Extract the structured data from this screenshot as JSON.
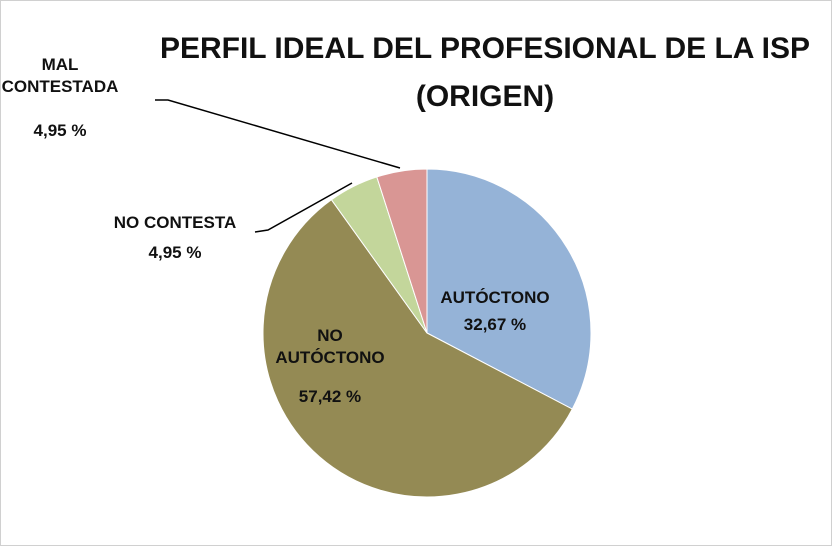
{
  "chart_data": {
    "type": "pie",
    "title": [
      "PERFIL IDEAL DEL PROFESIONAL DE LA ISP",
      "(ORIGEN)"
    ],
    "categories": [
      "AUTÓCTONO",
      "NO AUTÓCTONO",
      "NO CONTESTA",
      "MAL CONTESTADA"
    ],
    "values": [
      32.67,
      57.42,
      4.95,
      4.95
    ],
    "value_labels": [
      "32,67 %",
      "57,42 %",
      "4,95 %",
      "4,95 %"
    ],
    "colors": [
      "#95b3d7",
      "#948a54",
      "#c3d69b",
      "#d99694"
    ]
  }
}
